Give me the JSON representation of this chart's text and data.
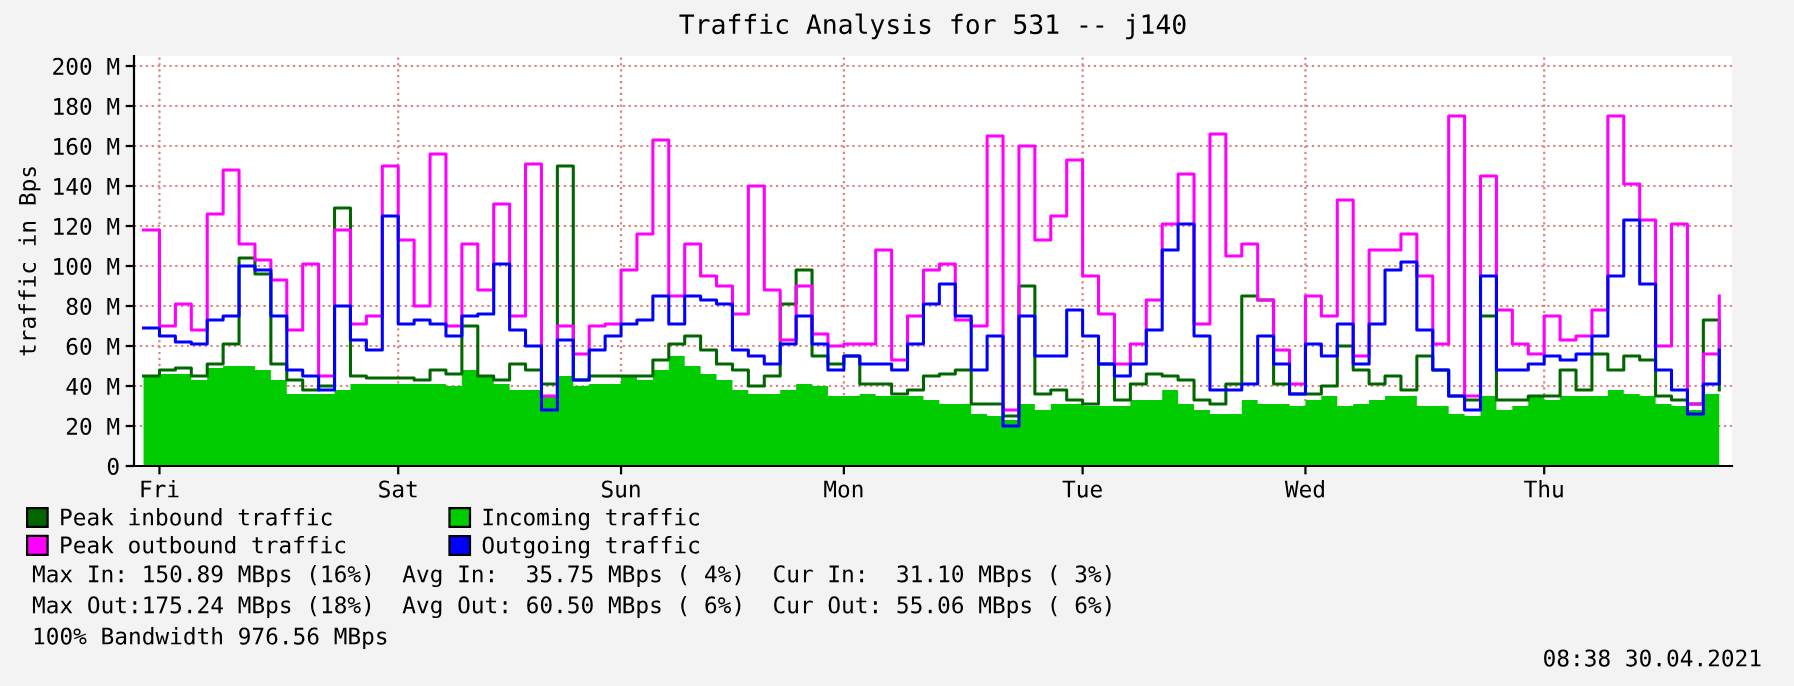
{
  "chart_data": {
    "type": "step",
    "title": "Traffic Analysis for 531 -- j140",
    "ylabel": "traffic in Bps",
    "categories": [
      null,
      "Fri",
      null,
      null,
      null,
      null,
      null,
      null,
      null,
      null,
      null,
      null,
      null,
      null,
      null,
      null,
      "Sat",
      null,
      null,
      null,
      null,
      null,
      null,
      null,
      null,
      null,
      null,
      null,
      null,
      null,
      "Sun",
      null,
      null,
      null,
      null,
      null,
      null,
      null,
      null,
      null,
      null,
      null,
      null,
      null,
      "Mon",
      null,
      null,
      null,
      null,
      null,
      null,
      null,
      null,
      null,
      null,
      null,
      null,
      null,
      null,
      "Tue",
      null,
      null,
      null,
      null,
      null,
      null,
      null,
      null,
      null,
      null,
      null,
      null,
      null,
      "Wed",
      null,
      null,
      null,
      null,
      null,
      null,
      null,
      null,
      null,
      null,
      null,
      null,
      null,
      null,
      "Thu",
      null,
      null,
      null,
      null,
      null,
      null,
      null,
      null,
      null,
      null,
      null
    ],
    "ylim": [
      0,
      205
    ],
    "yticks": [
      0,
      {
        "value": 20,
        "label": "20 M"
      },
      {
        "value": 40,
        "label": "40 M"
      },
      {
        "value": 60,
        "label": "60 M"
      },
      {
        "value": 80,
        "label": "80 M"
      },
      {
        "value": 100,
        "label": "100 M"
      },
      {
        "value": 120,
        "label": "120 M"
      },
      {
        "value": 140,
        "label": "140 M"
      },
      {
        "value": 160,
        "label": "160 M"
      },
      {
        "value": 180,
        "label": "180 M"
      },
      {
        "value": 200,
        "label": "200 M"
      }
    ],
    "grid": true,
    "legend": "bottom left",
    "series": [
      {
        "name": "Peak inbound traffic",
        "color": "#006600",
        "values": [
          45,
          48,
          49,
          45,
          51,
          61,
          104,
          96,
          51,
          43,
          38,
          40,
          129,
          45,
          44,
          44,
          44,
          43,
          48,
          46,
          70,
          45,
          43,
          51,
          48,
          41,
          150,
          43,
          45,
          45,
          45,
          45,
          53,
          61,
          65,
          58,
          51,
          48,
          40,
          45,
          81,
          98,
          55,
          51,
          55,
          41,
          41,
          36,
          38,
          45,
          46,
          48,
          31,
          31,
          25,
          90,
          36,
          38,
          33,
          31,
          51,
          33,
          41,
          46,
          45,
          43,
          33,
          31,
          41,
          85,
          83,
          41,
          36,
          36,
          40,
          60,
          48,
          41,
          45,
          38,
          55,
          48,
          35,
          33,
          75,
          33,
          33,
          35,
          35,
          48,
          38,
          56,
          48,
          55,
          53,
          35,
          33,
          31,
          73,
          38
        ]
      },
      {
        "name": "Peak outbound traffic",
        "color": "#ff00ff",
        "values": [
          118,
          70,
          81,
          68,
          126,
          148,
          111,
          103,
          93,
          68,
          101,
          45,
          118,
          71,
          75,
          150,
          113,
          80,
          156,
          70,
          111,
          88,
          131,
          75,
          151,
          35,
          70,
          56,
          70,
          71,
          98,
          116,
          163,
          85,
          111,
          95,
          90,
          76,
          140,
          88,
          63,
          90,
          66,
          60,
          61,
          61,
          108,
          53,
          75,
          98,
          101,
          73,
          70,
          165,
          28,
          160,
          113,
          125,
          153,
          95,
          76,
          51,
          61,
          83,
          121,
          146,
          71,
          166,
          105,
          111,
          83,
          58,
          41,
          85,
          75,
          133,
          55,
          108,
          108,
          116,
          95,
          61,
          175,
          35,
          145,
          78,
          61,
          56,
          75,
          63,
          65,
          78,
          175,
          141,
          123,
          60,
          121,
          31,
          56,
          85
        ]
      },
      {
        "name": "Incoming traffic",
        "type": "area",
        "color": "#00cc00",
        "values": [
          45,
          46,
          46,
          43,
          49,
          50,
          50,
          48,
          43,
          36,
          36,
          36,
          38,
          41,
          41,
          41,
          41,
          41,
          41,
          40,
          48,
          45,
          41,
          38,
          38,
          35,
          45,
          40,
          41,
          41,
          45,
          43,
          48,
          55,
          50,
          46,
          43,
          38,
          36,
          36,
          38,
          41,
          40,
          35,
          35,
          36,
          35,
          35,
          35,
          33,
          31,
          31,
          26,
          25,
          23,
          31,
          28,
          31,
          31,
          30,
          30,
          30,
          33,
          33,
          38,
          31,
          28,
          26,
          26,
          33,
          31,
          31,
          30,
          33,
          35,
          30,
          31,
          33,
          35,
          35,
          30,
          30,
          26,
          25,
          35,
          28,
          30,
          35,
          33,
          35,
          35,
          35,
          38,
          36,
          35,
          31,
          30,
          28,
          36,
          31
        ]
      },
      {
        "name": "Outgoing traffic",
        "color": "#0000ff",
        "values": [
          69,
          65,
          62,
          61,
          73,
          75,
          100,
          98,
          75,
          48,
          45,
          38,
          80,
          63,
          58,
          125,
          71,
          73,
          71,
          65,
          75,
          76,
          101,
          68,
          60,
          28,
          63,
          43,
          58,
          65,
          71,
          73,
          85,
          71,
          85,
          83,
          81,
          58,
          55,
          51,
          61,
          75,
          61,
          48,
          55,
          51,
          51,
          48,
          61,
          81,
          91,
          75,
          48,
          65,
          20,
          75,
          55,
          55,
          78,
          65,
          51,
          45,
          51,
          68,
          108,
          121,
          65,
          38,
          38,
          41,
          65,
          51,
          36,
          61,
          55,
          71,
          51,
          71,
          98,
          102,
          68,
          48,
          35,
          28,
          95,
          48,
          48,
          51,
          55,
          53,
          56,
          65,
          95,
          123,
          91,
          48,
          38,
          26,
          41,
          58
        ]
      }
    ],
    "annotations": [
      "Max In: 150.89 MBps (16%)  Avg In:  35.75 MBps ( 4%)  Cur In:  31.10 MBps ( 3%)",
      "Max Out:175.24 MBps (18%)  Avg Out: 60.50 MBps ( 6%)  Cur Out: 55.06 MBps ( 6%)",
      "100% Bandwidth 976.56 MBps",
      "08:38 30.04.2021"
    ]
  }
}
